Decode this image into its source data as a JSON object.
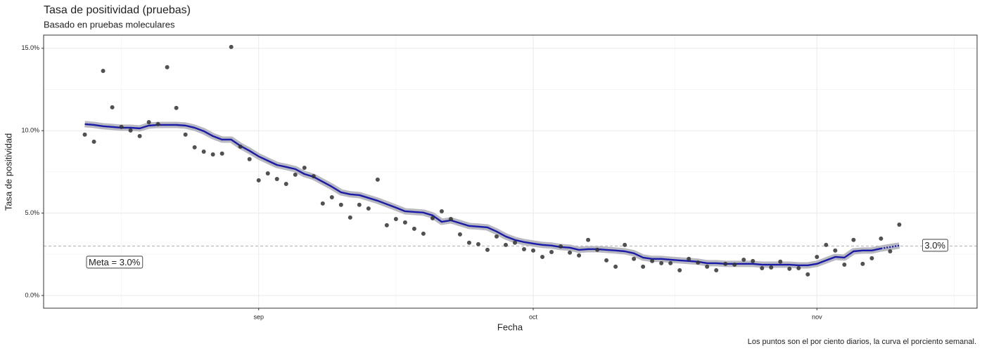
{
  "chart_data": {
    "type": "scatter_line",
    "title": "Tasa de positividad (pruebas)",
    "subtitle": "Basado en pruebas moleculares",
    "x_label": "Fecha",
    "y_label": "Tasa de positividad",
    "caption": "Los puntos son el por ciento diarios, la curva el porciento semanal.",
    "xlim": [
      -4.5,
      97.5
    ],
    "xticks": [
      {
        "value": 19,
        "label": "sep"
      },
      {
        "value": 49,
        "label": "oct"
      },
      {
        "value": 80,
        "label": "nov"
      }
    ],
    "minor_xticks": [
      4,
      34,
      64.5,
      95
    ],
    "ylim": [
      -0.77,
      15.8
    ],
    "yticks": [
      {
        "value": 0,
        "label": "0.0%"
      },
      {
        "value": 5,
        "label": "5.0%"
      },
      {
        "value": 10,
        "label": "10.0%"
      },
      {
        "value": 15,
        "label": "15.0%"
      }
    ],
    "minor_yticks": [
      2.5,
      7.5,
      12.5
    ],
    "grid": true,
    "points": {
      "color": "#333333",
      "x": [
        0,
        1,
        2,
        3,
        4,
        5,
        6,
        7,
        8,
        9,
        10,
        11,
        12,
        13,
        14,
        15,
        16,
        17,
        18,
        19,
        20,
        21,
        22,
        23,
        24,
        25,
        26,
        27,
        28,
        29,
        30,
        31,
        32,
        33,
        34,
        35,
        36,
        37,
        38,
        39,
        40,
        41,
        42,
        43,
        44,
        45,
        46,
        47,
        48,
        49,
        50,
        51,
        52,
        53,
        54,
        55,
        56,
        57,
        58,
        59,
        60,
        61,
        62,
        63,
        64,
        65,
        66,
        67,
        68,
        69,
        70,
        71,
        72,
        73,
        74,
        75,
        76,
        77,
        78,
        79,
        80,
        81,
        82,
        83,
        84,
        85,
        86,
        87,
        88,
        89
      ],
      "values": [
        9.76,
        9.33,
        13.63,
        11.42,
        10.23,
        10.01,
        9.67,
        10.52,
        10.4,
        13.85,
        11.38,
        9.76,
        8.99,
        8.73,
        8.56,
        8.61,
        15.08,
        9.03,
        8.27,
        6.99,
        7.41,
        7.07,
        6.77,
        7.33,
        7.75,
        7.24,
        5.58,
        5.96,
        5.5,
        4.73,
        5.5,
        5.28,
        7.03,
        4.26,
        4.64,
        4.43,
        4.05,
        3.75,
        4.69,
        5.11,
        4.64,
        3.71,
        3.2,
        3.11,
        2.77,
        3.58,
        3.07,
        3.2,
        2.81,
        2.73,
        2.34,
        2.64,
        2.98,
        2.6,
        2.43,
        3.37,
        2.77,
        2.13,
        1.75,
        3.07,
        2.22,
        1.75,
        2.09,
        1.96,
        1.96,
        1.53,
        2.22,
        2.0,
        1.75,
        1.53,
        1.92,
        1.87,
        2.17,
        2.09,
        1.66,
        1.7,
        2.05,
        1.62,
        1.66,
        1.28,
        2.34,
        3.07,
        2.73,
        1.87,
        3.37,
        1.92,
        2.26,
        3.45,
        2.68,
        4.3
      ]
    },
    "curve": {
      "color": "#1a1aa8",
      "band_color": "#b8b8c0",
      "values": [
        10.4,
        10.35,
        10.27,
        10.23,
        10.18,
        10.18,
        10.14,
        10.31,
        10.35,
        10.35,
        10.35,
        10.31,
        10.18,
        9.97,
        9.67,
        9.46,
        9.46,
        9.08,
        8.78,
        8.44,
        8.18,
        7.92,
        7.8,
        7.67,
        7.37,
        7.2,
        6.9,
        6.6,
        6.26,
        6.14,
        6.09,
        5.92,
        5.75,
        5.54,
        5.33,
        5.11,
        5.07,
        5.03,
        4.86,
        4.47,
        4.56,
        4.39,
        4.22,
        4.18,
        4.13,
        3.88,
        3.58,
        3.37,
        3.24,
        3.15,
        3.07,
        3.03,
        2.94,
        2.9,
        2.77,
        2.81,
        2.81,
        2.77,
        2.73,
        2.68,
        2.56,
        2.3,
        2.22,
        2.22,
        2.17,
        2.13,
        2.09,
        2.05,
        1.96,
        1.96,
        1.92,
        1.92,
        1.92,
        1.92,
        1.87,
        1.87,
        1.87,
        1.87,
        1.83,
        1.83,
        1.92,
        2.13,
        2.34,
        2.3,
        2.68,
        2.73,
        2.73,
        2.85,
        null,
        null
      ]
    },
    "curve_projection": {
      "values": [
        null,
        null,
        null,
        null,
        null,
        null,
        null,
        null,
        null,
        null,
        null,
        null,
        null,
        null,
        null,
        null,
        null,
        null,
        null,
        null,
        null,
        null,
        null,
        null,
        null,
        null,
        null,
        null,
        null,
        null,
        null,
        null,
        null,
        null,
        null,
        null,
        null,
        null,
        null,
        null,
        null,
        null,
        null,
        null,
        null,
        null,
        null,
        null,
        null,
        null,
        null,
        null,
        null,
        null,
        null,
        null,
        null,
        null,
        null,
        null,
        null,
        null,
        null,
        null,
        null,
        null,
        null,
        null,
        null,
        null,
        null,
        null,
        null,
        null,
        null,
        null,
        null,
        null,
        null,
        null,
        null,
        null,
        null,
        null,
        null,
        null,
        null,
        2.85,
        2.94,
        3.03
      ]
    },
    "target": {
      "value": 3,
      "label": "Meta = 3.0%",
      "right_label": "3.0%",
      "color": "#bbbbbb"
    }
  }
}
